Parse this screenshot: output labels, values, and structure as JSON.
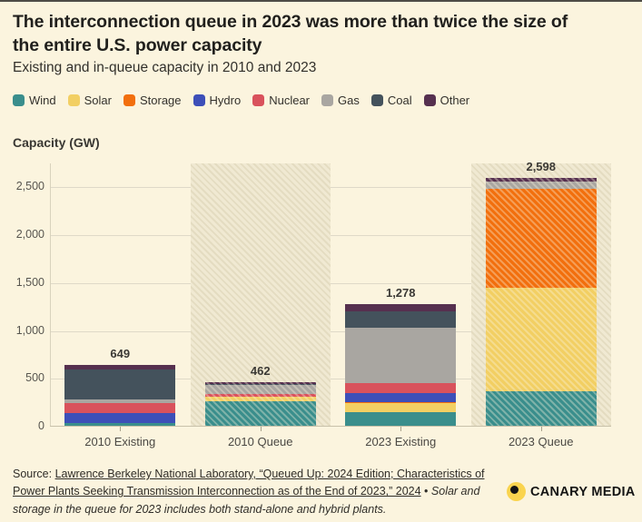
{
  "header": {
    "title": "The interconnection queue in 2023 was more than twice the size of\nthe entire U.S. power capacity",
    "subtitle": "Existing and in-queue capacity in 2010 and 2023"
  },
  "axis_title": "Capacity (GW)",
  "chart_data": {
    "type": "bar",
    "stacked": true,
    "title": "Existing and in-queue capacity in 2010 and 2023",
    "ylabel": "Capacity (GW)",
    "xlabel": "",
    "categories": [
      "2010 Existing",
      "2010 Queue",
      "2023 Existing",
      "2023 Queue"
    ],
    "hatched_categories": [
      "2010 Queue",
      "2023 Queue"
    ],
    "series": [
      {
        "name": "Wind",
        "color": "#3A8E8C",
        "values": [
          40,
          265,
          148,
          366
        ]
      },
      {
        "name": "Solar",
        "color": "#F2CF63",
        "values": [
          0,
          48,
          95,
          1086
        ]
      },
      {
        "name": "Storage",
        "color": "#F26F0D",
        "values": [
          0,
          0,
          10,
          1028
        ]
      },
      {
        "name": "Hydro",
        "color": "#3D4FB8",
        "values": [
          100,
          0,
          97,
          0
        ]
      },
      {
        "name": "Nuclear",
        "color": "#D9525C",
        "values": [
          107,
          26,
          110,
          0
        ]
      },
      {
        "name": "Gas",
        "color": "#A9A6A1",
        "values": [
          35,
          93,
          570,
          79
        ]
      },
      {
        "name": "Coal",
        "color": "#44525C",
        "values": [
          320,
          14,
          178,
          0
        ]
      },
      {
        "name": "Other",
        "color": "#56304F",
        "values": [
          47,
          16,
          70,
          39
        ]
      }
    ],
    "totals": [
      649,
      462,
      1278,
      2598
    ],
    "ylim": [
      0,
      2750
    ],
    "yticks": [
      0,
      500,
      1000,
      1500,
      2000,
      2500
    ],
    "grid": true,
    "legend_position": "top"
  },
  "footer": {
    "source_prefix": "Source: ",
    "source_link": "Lawrence Berkeley National Laboratory, “Queued Up: 2024 Edition; Characteristics of Power Plants Seeking Transmission Interconnection as of the End of 2023,” 2024",
    "separator": " • ",
    "note": "Solar and storage in the queue for 2023 includes both stand-alone and hybrid plants."
  },
  "logo": {
    "text": "CANARY MEDIA"
  }
}
